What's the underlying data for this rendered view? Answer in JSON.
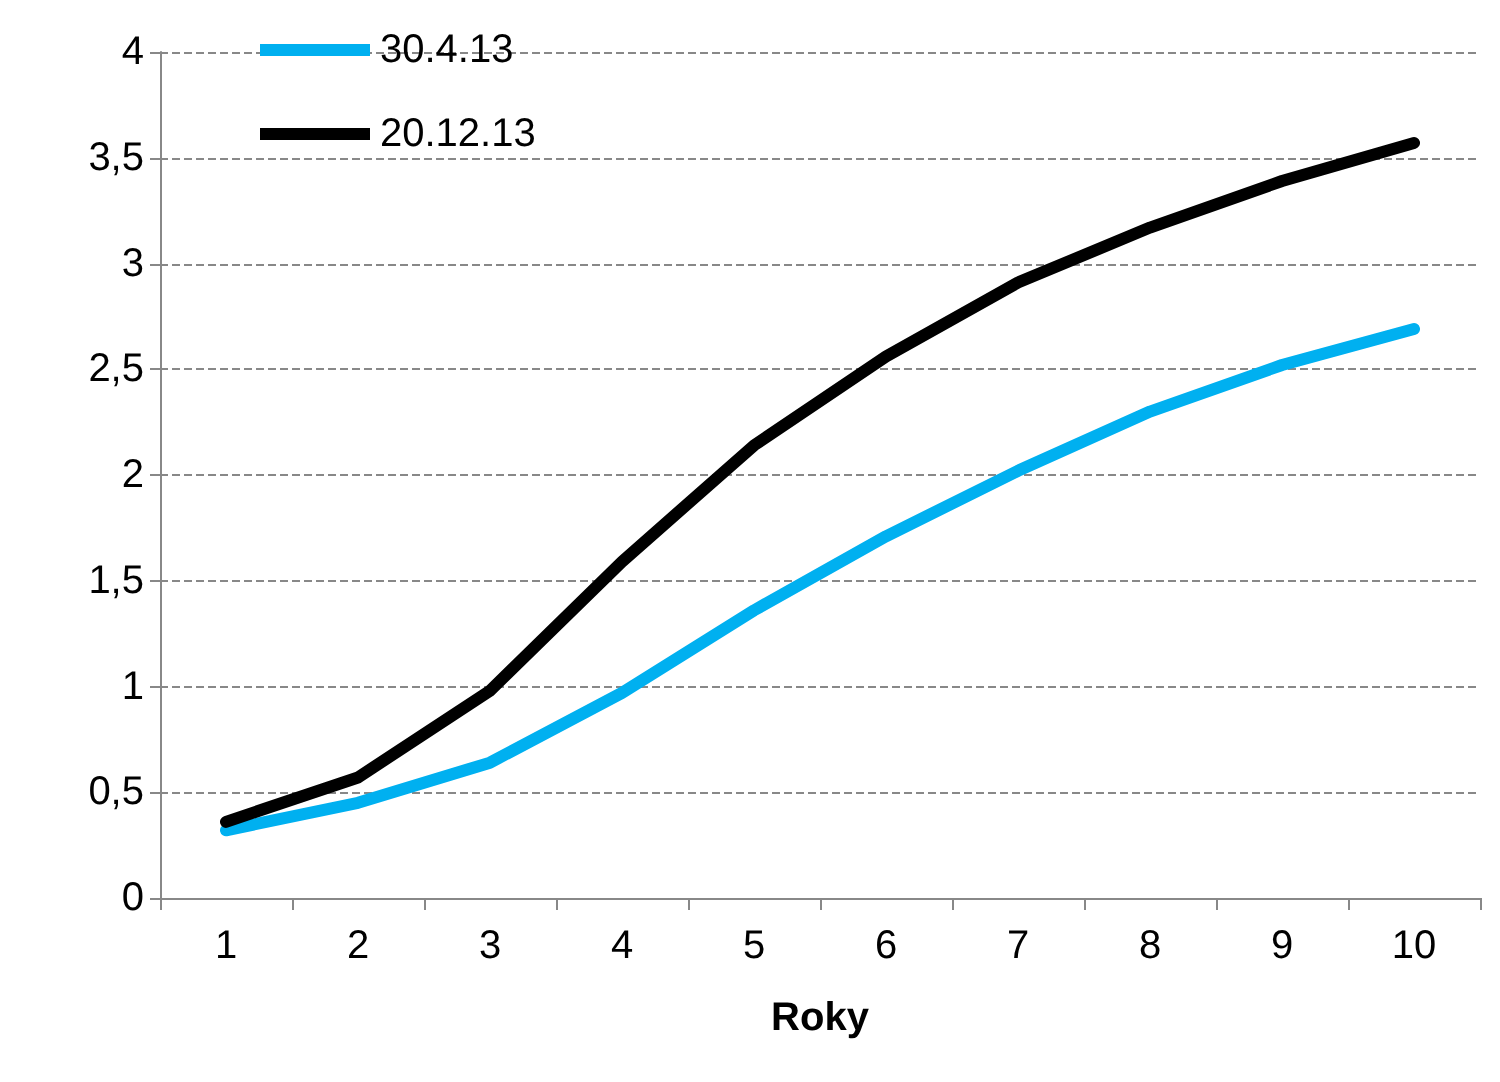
{
  "chart_data": {
    "type": "line",
    "xlabel": "Roky",
    "categories": [
      "1",
      "2",
      "3",
      "4",
      "5",
      "6",
      "7",
      "8",
      "9",
      "10"
    ],
    "series": [
      {
        "name": "30.4.13",
        "color": "#00b0f0",
        "values": [
          0.32,
          0.45,
          0.64,
          0.97,
          1.36,
          1.71,
          2.02,
          2.3,
          2.52,
          2.69
        ]
      },
      {
        "name": "20.12.13",
        "color": "#000000",
        "values": [
          0.36,
          0.57,
          0.98,
          1.59,
          2.14,
          2.56,
          2.91,
          3.17,
          3.39,
          3.57
        ]
      }
    ],
    "ylim": [
      0,
      4
    ],
    "yticks": [
      0,
      {
        "value": 0.5,
        "label": "0,5"
      },
      1,
      {
        "value": 1.5,
        "label": "1,5"
      },
      2,
      {
        "value": 2.5,
        "label": "2,5"
      },
      3,
      {
        "value": 3.5,
        "label": "3,5"
      },
      4
    ],
    "grid": "y",
    "legend": "top left",
    "marker": "none",
    "line_style": "solid"
  }
}
